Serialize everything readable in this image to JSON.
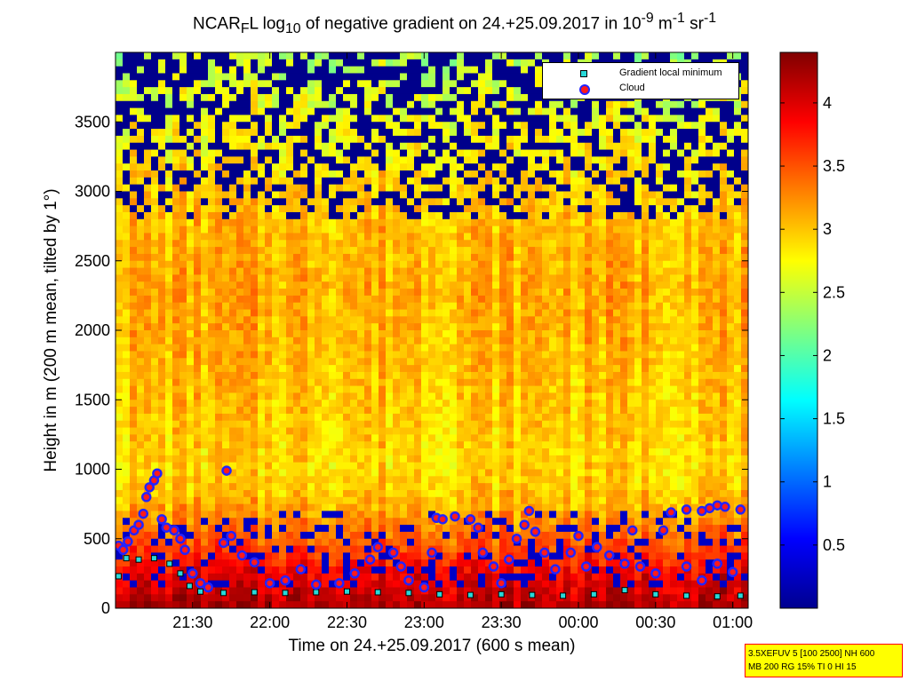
{
  "chart_data": {
    "type": "heatmap",
    "title": {
      "prefix": "NCAR",
      "sub1": "F",
      "mid1": "L log",
      "sub2": "10",
      "mid2": " of negative gradient on 24.+25.09.2017 in 10",
      "sup1": "-9",
      "mid3": " m",
      "sup2": "-1",
      "mid4": " sr",
      "sup3": "-1"
    },
    "xlabel": "Time on 24.+25.09.2017 (600 s mean)",
    "ylabel": "Height in m (200 m mean, tilted by 1°)",
    "x_range_hours": [
      21.0,
      25.1
    ],
    "x_ticks": [
      {
        "label": "21:30",
        "hour": 21.5
      },
      {
        "label": "22:00",
        "hour": 22.0
      },
      {
        "label": "22:30",
        "hour": 22.5
      },
      {
        "label": "23:00",
        "hour": 23.0
      },
      {
        "label": "23:30",
        "hour": 23.5
      },
      {
        "label": "00:00",
        "hour": 24.0
      },
      {
        "label": "00:30",
        "hour": 24.5
      },
      {
        "label": "01:00",
        "hour": 25.0
      }
    ],
    "ylim": [
      0,
      4000
    ],
    "y_ticks": [
      0,
      500,
      1000,
      1500,
      2000,
      2500,
      3000,
      3500
    ],
    "colorbar": {
      "range": [
        0,
        4.4
      ],
      "ticks": [
        "0.5",
        "1",
        "1.5",
        "2",
        "2.5",
        "3",
        "3.5",
        "4"
      ],
      "colormap": "jet"
    },
    "legend": {
      "placement": "top-right",
      "entries": [
        {
          "label": "Gradient local minimum",
          "marker": "square",
          "color": "#29d8d8"
        },
        {
          "label": "Cloud",
          "marker": "circle",
          "color": "#ff1a1a"
        }
      ]
    },
    "field_profile": [
      {
        "height": 0,
        "value": 4.2
      },
      {
        "height": 250,
        "value": 3.9
      },
      {
        "height": 500,
        "value": 3.4
      },
      {
        "height": 800,
        "value": 3.0
      },
      {
        "height": 1000,
        "value": 2.9
      },
      {
        "height": 1600,
        "value": 3.0
      },
      {
        "height": 2300,
        "value": 3.1
      },
      {
        "height": 2900,
        "value": 3.0
      },
      {
        "height": 3300,
        "value": 2.8
      },
      {
        "height": 3700,
        "value": 2.6
      },
      {
        "height": 4000,
        "value": 2.4
      }
    ],
    "gradient_minimum_series": [
      {
        "hour": 21.02,
        "height": 230
      },
      {
        "hour": 21.07,
        "height": 360
      },
      {
        "hour": 21.15,
        "height": 350
      },
      {
        "hour": 21.25,
        "height": 360
      },
      {
        "hour": 21.35,
        "height": 320
      },
      {
        "hour": 21.42,
        "height": 250
      },
      {
        "hour": 21.48,
        "height": 160
      },
      {
        "hour": 21.55,
        "height": 120
      },
      {
        "hour": 21.7,
        "height": 110
      },
      {
        "hour": 21.9,
        "height": 115
      },
      {
        "hour": 22.1,
        "height": 110
      },
      {
        "hour": 22.3,
        "height": 115
      },
      {
        "hour": 22.5,
        "height": 120
      },
      {
        "hour": 22.7,
        "height": 115
      },
      {
        "hour": 22.9,
        "height": 110
      },
      {
        "hour": 23.1,
        "height": 100
      },
      {
        "hour": 23.3,
        "height": 95
      },
      {
        "hour": 23.5,
        "height": 100
      },
      {
        "hour": 23.7,
        "height": 95
      },
      {
        "hour": 23.9,
        "height": 90
      },
      {
        "hour": 24.1,
        "height": 100
      },
      {
        "hour": 24.3,
        "height": 130
      },
      {
        "hour": 24.5,
        "height": 100
      },
      {
        "hour": 24.7,
        "height": 90
      },
      {
        "hour": 24.9,
        "height": 85
      },
      {
        "hour": 25.05,
        "height": 90
      }
    ],
    "cloud_series": [
      {
        "hour": 21.02,
        "height": 450
      },
      {
        "hour": 21.05,
        "height": 420
      },
      {
        "hour": 21.08,
        "height": 480
      },
      {
        "hour": 21.12,
        "height": 560
      },
      {
        "hour": 21.15,
        "height": 600
      },
      {
        "hour": 21.18,
        "height": 680
      },
      {
        "hour": 21.2,
        "height": 800
      },
      {
        "hour": 21.22,
        "height": 870
      },
      {
        "hour": 21.25,
        "height": 920
      },
      {
        "hour": 21.27,
        "height": 970
      },
      {
        "hour": 21.3,
        "height": 640
      },
      {
        "hour": 21.33,
        "height": 580
      },
      {
        "hour": 21.38,
        "height": 560
      },
      {
        "hour": 21.42,
        "height": 500
      },
      {
        "hour": 21.45,
        "height": 420
      },
      {
        "hour": 21.5,
        "height": 250
      },
      {
        "hour": 21.55,
        "height": 180
      },
      {
        "hour": 21.6,
        "height": 150
      },
      {
        "hour": 21.7,
        "height": 470
      },
      {
        "hour": 21.72,
        "height": 990
      },
      {
        "hour": 21.75,
        "height": 520
      },
      {
        "hour": 21.82,
        "height": 380
      },
      {
        "hour": 21.9,
        "height": 330
      },
      {
        "hour": 22.0,
        "height": 180
      },
      {
        "hour": 22.1,
        "height": 200
      },
      {
        "hour": 22.2,
        "height": 280
      },
      {
        "hour": 22.3,
        "height": 170
      },
      {
        "hour": 22.45,
        "height": 180
      },
      {
        "hour": 22.55,
        "height": 250
      },
      {
        "hour": 22.65,
        "height": 350
      },
      {
        "hour": 22.7,
        "height": 440
      },
      {
        "hour": 22.8,
        "height": 400
      },
      {
        "hour": 22.85,
        "height": 300
      },
      {
        "hour": 22.9,
        "height": 200
      },
      {
        "hour": 23.0,
        "height": 150
      },
      {
        "hour": 23.05,
        "height": 400
      },
      {
        "hour": 23.08,
        "height": 650
      },
      {
        "hour": 23.12,
        "height": 640
      },
      {
        "hour": 23.2,
        "height": 660
      },
      {
        "hour": 23.3,
        "height": 640
      },
      {
        "hour": 23.35,
        "height": 580
      },
      {
        "hour": 23.38,
        "height": 400
      },
      {
        "hour": 23.45,
        "height": 300
      },
      {
        "hour": 23.5,
        "height": 180
      },
      {
        "hour": 23.55,
        "height": 350
      },
      {
        "hour": 23.6,
        "height": 500
      },
      {
        "hour": 23.65,
        "height": 600
      },
      {
        "hour": 23.68,
        "height": 700
      },
      {
        "hour": 23.72,
        "height": 550
      },
      {
        "hour": 23.78,
        "height": 400
      },
      {
        "hour": 23.85,
        "height": 280
      },
      {
        "hour": 23.95,
        "height": 400
      },
      {
        "hour": 24.0,
        "height": 520
      },
      {
        "hour": 24.05,
        "height": 300
      },
      {
        "hour": 24.12,
        "height": 440
      },
      {
        "hour": 24.2,
        "height": 380
      },
      {
        "hour": 24.3,
        "height": 320
      },
      {
        "hour": 24.35,
        "height": 560
      },
      {
        "hour": 24.4,
        "height": 300
      },
      {
        "hour": 24.5,
        "height": 250
      },
      {
        "hour": 24.55,
        "height": 560
      },
      {
        "hour": 24.6,
        "height": 690
      },
      {
        "hour": 24.7,
        "height": 710
      },
      {
        "hour": 24.8,
        "height": 700
      },
      {
        "hour": 24.85,
        "height": 720
      },
      {
        "hour": 24.9,
        "height": 740
      },
      {
        "hour": 24.95,
        "height": 730
      },
      {
        "hour": 25.05,
        "height": 710
      },
      {
        "hour": 24.7,
        "height": 300
      },
      {
        "hour": 24.8,
        "height": 200
      },
      {
        "hour": 24.9,
        "height": 320
      },
      {
        "hour": 25.0,
        "height": 260
      }
    ]
  },
  "info_box": {
    "line1": "3.5XEFUV 5 [100 2500] NH 600",
    "line2": "MB 200 RG 15% TI 0 HI 15"
  }
}
